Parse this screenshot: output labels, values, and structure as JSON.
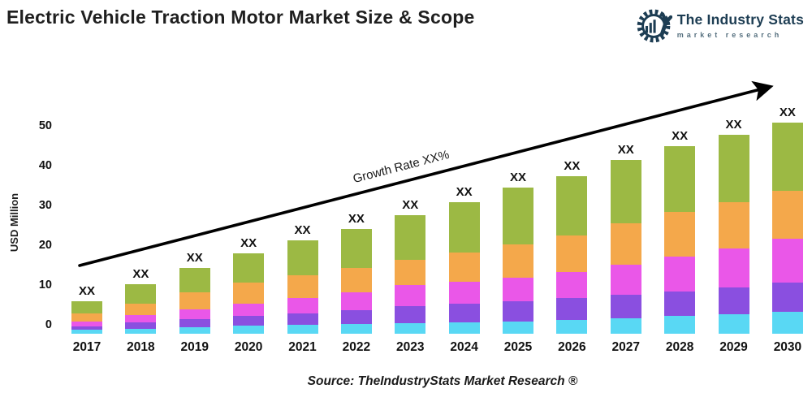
{
  "header": {
    "title": "Electric Vehicle Traction Motor Market Size & Scope",
    "logo": {
      "name": "The Industry Stats",
      "tagline": "market research",
      "brand_color": "#1d3d53",
      "icon": "gear-wrench-barchart-icon"
    }
  },
  "chart_data": {
    "type": "bar",
    "stacked": true,
    "title": "Electric Vehicle Traction Motor Market Size & Scope",
    "xlabel": "",
    "ylabel": "USD Million",
    "yticks": [
      0,
      10,
      20,
      30,
      40,
      50
    ],
    "ylim": [
      -2.3,
      55
    ],
    "grid": false,
    "legend": "none",
    "x": [
      "2017",
      "2018",
      "2019",
      "2020",
      "2021",
      "2022",
      "2023",
      "2024",
      "2025",
      "2026",
      "2027",
      "2028",
      "2029",
      "2030"
    ],
    "bar_total_labels": [
      "XX",
      "XX",
      "XX",
      "XX",
      "XX",
      "XX",
      "XX",
      "XX",
      "XX",
      "XX",
      "XX",
      "XX",
      "XX",
      "XX"
    ],
    "series": [
      {
        "name": "segment-cyan",
        "color": "#59d8f4",
        "values": [
          1.0,
          1.3,
          1.7,
          2.0,
          2.2,
          2.4,
          2.6,
          2.8,
          3.0,
          3.4,
          3.9,
          4.4,
          4.9,
          5.5
        ]
      },
      {
        "name": "segment-purple",
        "color": "#8a4fe0",
        "values": [
          0.9,
          1.5,
          2.0,
          2.5,
          3.0,
          3.6,
          4.3,
          4.7,
          5.1,
          5.5,
          5.9,
          6.3,
          6.8,
          7.3
        ]
      },
      {
        "name": "segment-magenta",
        "color": "#ea57e8",
        "values": [
          1.2,
          1.9,
          2.5,
          3.1,
          3.8,
          4.5,
          5.3,
          5.6,
          5.9,
          6.7,
          7.6,
          8.6,
          9.7,
          11.0
        ]
      },
      {
        "name": "segment-orange",
        "color": "#f4a84b",
        "values": [
          2.0,
          2.9,
          4.3,
          5.3,
          5.7,
          6.0,
          6.3,
          7.3,
          8.4,
          9.1,
          10.4,
          11.3,
          11.7,
          12.1
        ]
      },
      {
        "name": "segment-green",
        "color": "#9cb944",
        "values": [
          3.1,
          4.9,
          6.1,
          7.4,
          8.8,
          9.9,
          11.2,
          12.7,
          14.3,
          14.8,
          15.9,
          16.6,
          16.9,
          17.1
        ]
      }
    ],
    "annotation": "Growth Rate XX%",
    "annotation_style": "rotated along trend arrow"
  },
  "footer": {
    "source": "Source: TheIndustryStats Market Research ®"
  }
}
